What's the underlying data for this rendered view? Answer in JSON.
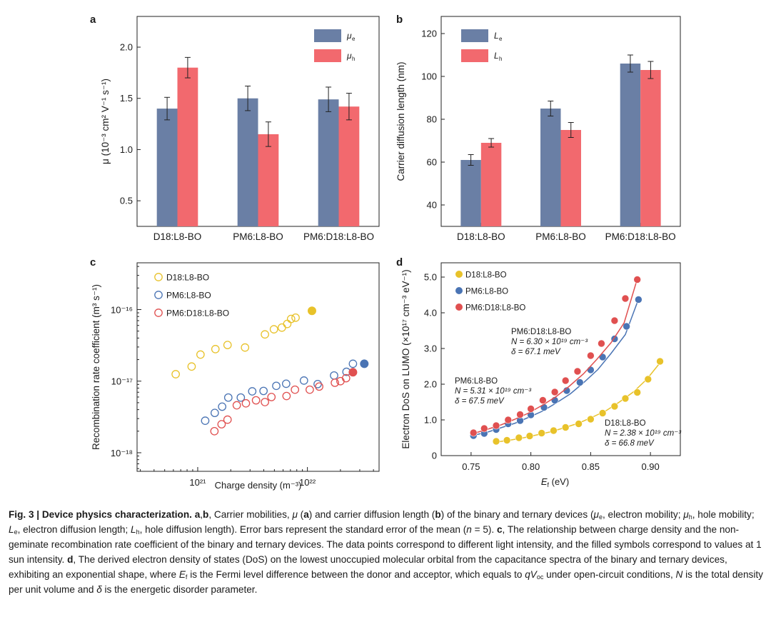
{
  "chart_data": [
    {
      "panel": "a",
      "type": "bar",
      "title": "",
      "xlabel": "",
      "ylabel": "μ (10⁻³ cm² V⁻¹ s⁻¹)",
      "ylim": [
        0.25,
        2.3
      ],
      "yticks": [
        0.5,
        1.0,
        1.5,
        2.0
      ],
      "ytick_labels": [
        "0.5",
        "1.0",
        "1.5",
        "2.0"
      ],
      "categories": [
        "D18:L8-BO",
        "PM6:L8-BO",
        "PM6:D18:L8-BO"
      ],
      "series": [
        {
          "name": "μe",
          "color": "#6a7fa5",
          "values": [
            1.4,
            1.5,
            1.49
          ],
          "errors": [
            0.11,
            0.12,
            0.12
          ]
        },
        {
          "name": "μh",
          "color": "#f2696e",
          "values": [
            1.8,
            1.15,
            1.42
          ],
          "errors": [
            0.1,
            0.12,
            0.13
          ]
        }
      ],
      "legend_position": "top-right"
    },
    {
      "panel": "b",
      "type": "bar",
      "title": "",
      "xlabel": "",
      "ylabel": "Carrier diffusion length (nm)",
      "ylim": [
        30,
        128
      ],
      "yticks": [
        40,
        60,
        80,
        100,
        120
      ],
      "ytick_labels": [
        "40",
        "60",
        "80",
        "100",
        "120"
      ],
      "categories": [
        "D18:L8-BO",
        "PM6:L8-BO",
        "PM6:D18:L8-BO"
      ],
      "series": [
        {
          "name": "Le",
          "color": "#6a7fa5",
          "values": [
            61,
            85,
            106
          ],
          "errors": [
            2.5,
            3.5,
            4
          ]
        },
        {
          "name": "Lh",
          "color": "#f2696e",
          "values": [
            69,
            75,
            103
          ],
          "errors": [
            2,
            3.5,
            4
          ]
        }
      ],
      "legend_position": "top-left"
    },
    {
      "panel": "c",
      "type": "scatter",
      "xscale": "log",
      "yscale": "log",
      "xlabel": "Charge density (m⁻³)",
      "ylabel": "Recombination rate coefficient (m³ s⁻¹)",
      "xlim": [
        2.8e+20,
        4.5e+22
      ],
      "ylim": [
        5.5e-19,
        4.5e-16
      ],
      "xticks": [
        1e+21,
        1e+22
      ],
      "xtick_labels": [
        "10²¹",
        "10²²"
      ],
      "yticks": [
        1e-18,
        1e-17,
        1e-16
      ],
      "ytick_labels": [
        "10⁻¹⁸",
        "10⁻¹⁷",
        "10⁻¹⁶"
      ],
      "series": [
        {
          "name": "D18:L8-BO",
          "color": "#e8c22a",
          "x": [
            6.3e+20,
            8.8e+20,
            1.06e+21,
            1.45e+21,
            1.87e+21,
            2.7e+21,
            4.1e+21,
            4.95e+21,
            5.85e+21,
            6.55e+21,
            7.1e+21,
            7.8e+21
          ],
          "y": [
            1.25e-17,
            1.6e-17,
            2.35e-17,
            2.8e-17,
            3.2e-17,
            2.95e-17,
            4.5e-17,
            5.3e-17,
            5.6e-17,
            6.3e-17,
            7.4e-17,
            7.7e-17
          ],
          "filled_x": 1.1e+22,
          "filled_y": 9.6e-17
        },
        {
          "name": "PM6:L8-BO",
          "color": "#4a74b4",
          "x": [
            1.17e+21,
            1.43e+21,
            1.67e+21,
            1.9e+21,
            2.47e+21,
            3.14e+21,
            3.98e+21,
            5.2e+21,
            6.4e+21,
            9.3e+21,
            1.24e+22,
            1.75e+22,
            2.27e+22,
            2.6e+22
          ],
          "y": [
            2.8e-18,
            3.6e-18,
            4.4e-18,
            5.9e-18,
            5.9e-18,
            7.2e-18,
            7.3e-18,
            8.6e-18,
            9.2e-18,
            1.02e-17,
            9.1e-18,
            1.2e-17,
            1.35e-17,
            1.75e-17
          ],
          "filled_x": 3.3e+22,
          "filled_y": 1.75e-17
        },
        {
          "name": "PM6:D18:L8-BO",
          "color": "#e05050",
          "x": [
            1.42e+21,
            1.65e+21,
            1.87e+21,
            2.27e+21,
            2.75e+21,
            3.4e+21,
            4.1e+21,
            4.7e+21,
            6.45e+21,
            7.7e+21,
            1.05e+22,
            1.28e+22,
            1.78e+22,
            2e+22,
            2.25e+22
          ],
          "y": [
            2e-18,
            2.5e-18,
            2.9e-18,
            4.6e-18,
            4.9e-18,
            5.4e-18,
            5.1e-18,
            6e-18,
            6.2e-18,
            7.6e-18,
            7.6e-18,
            8.4e-18,
            9.5e-18,
            1e-17,
            1.1e-17
          ],
          "filled_x": 2.6e+22,
          "filled_y": 1.33e-17
        }
      ],
      "legend_position": "top-left"
    },
    {
      "panel": "d",
      "type": "line",
      "xlabel": "Ef (eV)",
      "ylabel": "Electron DoS on LUMO (×10¹⁷ cm⁻³ eV⁻¹)",
      "xlim": [
        0.725,
        0.925
      ],
      "ylim": [
        0,
        5.4
      ],
      "xticks": [
        0.75,
        0.8,
        0.85,
        0.9
      ],
      "xtick_labels": [
        "0.75",
        "0.80",
        "0.85",
        "0.90"
      ],
      "yticks": [
        0,
        1.0,
        2.0,
        3.0,
        4.0,
        5.0
      ],
      "ytick_labels": [
        "0",
        "1.0",
        "2.0",
        "3.0",
        "4.0",
        "5.0"
      ],
      "series": [
        {
          "name": "D18:L8-BO",
          "color": "#e8c22a",
          "x": [
            0.771,
            0.78,
            0.79,
            0.799,
            0.809,
            0.819,
            0.829,
            0.84,
            0.85,
            0.86,
            0.87,
            0.879,
            0.889,
            0.898,
            0.908
          ],
          "y": [
            0.4,
            0.43,
            0.5,
            0.55,
            0.63,
            0.7,
            0.79,
            0.89,
            1.02,
            1.19,
            1.38,
            1.6,
            1.77,
            2.14,
            2.64
          ],
          "fit_x": [
            0.771,
            0.782,
            0.794,
            0.805,
            0.817,
            0.828,
            0.84,
            0.851,
            0.863,
            0.874,
            0.886,
            0.897,
            0.908
          ],
          "fit_y": [
            0.38,
            0.43,
            0.5,
            0.58,
            0.67,
            0.78,
            0.91,
            1.07,
            1.26,
            1.5,
            1.79,
            2.14,
            2.6
          ]
        },
        {
          "name": "PM6:L8-BO",
          "color": "#4a74b4",
          "x": [
            0.752,
            0.761,
            0.771,
            0.781,
            0.791,
            0.8,
            0.811,
            0.82,
            0.83,
            0.841,
            0.85,
            0.86,
            0.87,
            0.88,
            0.89
          ],
          "y": [
            0.56,
            0.62,
            0.73,
            0.89,
            0.98,
            1.14,
            1.35,
            1.55,
            1.82,
            2.05,
            2.4,
            2.76,
            3.27,
            3.62,
            4.37
          ],
          "fit_x": [
            0.752,
            0.764,
            0.775,
            0.787,
            0.798,
            0.81,
            0.821,
            0.833,
            0.844,
            0.856,
            0.867,
            0.879,
            0.89
          ],
          "fit_y": [
            0.57,
            0.66,
            0.78,
            0.91,
            1.07,
            1.25,
            1.47,
            1.73,
            2.04,
            2.41,
            2.86,
            3.39,
            4.38
          ]
        },
        {
          "name": "PM6:D18:L8-BO",
          "color": "#e05050",
          "x": [
            0.752,
            0.761,
            0.771,
            0.781,
            0.791,
            0.8,
            0.81,
            0.82,
            0.829,
            0.839,
            0.85,
            0.859,
            0.87,
            0.879,
            0.889
          ],
          "y": [
            0.64,
            0.76,
            0.84,
            1.0,
            1.15,
            1.31,
            1.55,
            1.78,
            2.1,
            2.36,
            2.8,
            3.14,
            3.78,
            4.4,
            4.93
          ],
          "fit_x": [
            0.752,
            0.763,
            0.775,
            0.786,
            0.798,
            0.809,
            0.821,
            0.832,
            0.844,
            0.855,
            0.867,
            0.878,
            0.889
          ],
          "fit_y": [
            0.62,
            0.73,
            0.86,
            1.01,
            1.19,
            1.4,
            1.65,
            1.94,
            2.29,
            2.69,
            3.16,
            3.72,
            4.95
          ]
        }
      ],
      "annotations": [
        {
          "name": "PM6:D18:L8-BO",
          "N": "N = 6.30 × 10¹⁹ cm⁻³",
          "delta": "δ = 67.1 meV"
        },
        {
          "name": "PM6:L8-BO",
          "N": "N = 5.31 × 10¹⁹ cm⁻³",
          "delta": "δ = 67.5 meV"
        },
        {
          "name": "D18:L8-BO",
          "N": "N = 2.38 × 10¹⁹ cm⁻³",
          "delta": "δ = 66.8 meV"
        }
      ],
      "legend_position": "top-left"
    }
  ],
  "panel_labels": [
    "a",
    "b",
    "c",
    "d"
  ],
  "caption": {
    "fig": "Fig. 3 | Device physics characterization.",
    "t1": " ",
    "ab": "a",
    "t2": ",",
    "b": "b",
    "t3": ", Carrier mobilities, ",
    "mu": "μ",
    "t4": " (",
    "a2": "a",
    "t5": ") and carrier diffusion length (",
    "b2": "b",
    "t6": ") of the binary and ternary devices (",
    "mue": "μ",
    "e_sub": "e",
    "t7": ", electron mobility; ",
    "muh": "μ",
    "h_sub": "h",
    "t8": ", hole mobility; ",
    "le": "L",
    "le_sub": "e",
    "t9": ", electron diffusion length; ",
    "lh": "L",
    "lh_sub": "h",
    "t10": ", hole diffusion length). Error bars represent the standard error of the mean (",
    "n": "n",
    "t11": " = 5). ",
    "c": "c",
    "t12": ", The relationship between charge density and the non-geminate recombination rate coefficient of the binary and ternary devices. The data points correspond to different light intensity, and the filled symbols correspond to values at 1 sun intensity. ",
    "d": "d",
    "t13": ", The derived electron density of states (DoS) on the lowest unoccupied molecular orbital from the capacitance spectra of the binary and ternary devices, exhibiting an exponential shape, where ",
    "ef": "E",
    "ef_sub": "f",
    "t14": " is the Fermi level difference between the donor and acceptor, which equals to ",
    "qv": "qV",
    "oc_sub": "oc",
    "t15": " under open-circuit conditions, ",
    "N": "N",
    "t16": " is the total density per unit volume and ",
    "delta": "δ",
    "t17": " is the energetic disorder parameter."
  }
}
